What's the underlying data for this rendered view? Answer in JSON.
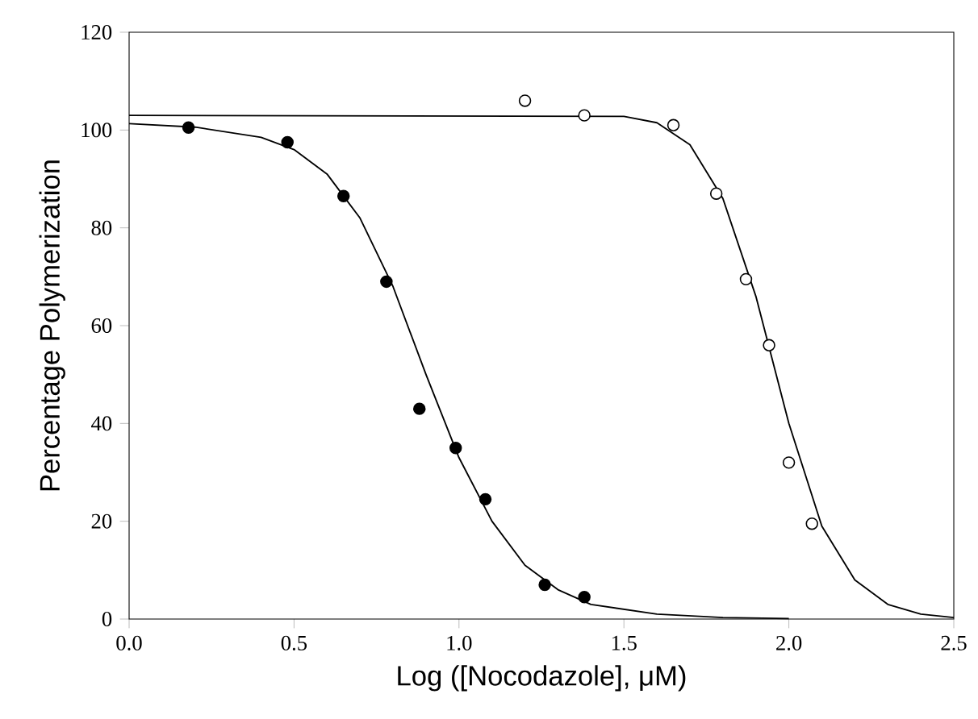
{
  "chart_data": {
    "type": "scatter",
    "xlabel": "Log ([Nocodazole], μM)",
    "ylabel": "Percentage Polymerization",
    "xlim": [
      0,
      2.5
    ],
    "ylim": [
      0,
      120
    ],
    "xticks": [
      {
        "value": 0,
        "label": "0.0"
      },
      {
        "value": 0.5,
        "label": "0.5"
      },
      {
        "value": 1,
        "label": "1.0"
      },
      {
        "value": 1.5,
        "label": "1.5"
      },
      {
        "value": 2,
        "label": "2.0"
      },
      {
        "value": 2.5,
        "label": "2.5"
      }
    ],
    "yticks": [
      0,
      20,
      40,
      60,
      80,
      100,
      120
    ],
    "grid": false,
    "series": [
      {
        "marker": "circle",
        "color": "#000000",
        "x": [
          0.18,
          0.48,
          0.65,
          0.78,
          0.88,
          0.99,
          1.08,
          1.26,
          1.38
        ],
        "values": [
          100.5,
          97.5,
          86.5,
          69,
          43,
          35,
          24.5,
          7,
          4.5
        ]
      },
      {
        "marker": "circle",
        "color": "#ffffff",
        "x": [
          1.2,
          1.38,
          1.65,
          1.78,
          1.87,
          1.94,
          2.0,
          2.07
        ],
        "values": [
          106,
          103,
          101,
          87,
          69.5,
          56,
          32,
          19.5
        ]
      },
      {
        "type": "line",
        "marker": "none",
        "color": "#000000",
        "x": [
          0,
          0.2,
          0.4,
          0.5,
          0.6,
          0.7,
          0.8,
          0.9,
          1.0,
          1.1,
          1.2,
          1.3,
          1.4,
          1.6,
          1.8,
          2.0
        ],
        "values": [
          101.3,
          100.6,
          98.5,
          96,
          91,
          82,
          68,
          50,
          33,
          20,
          11,
          6,
          3,
          1,
          0.3,
          0.1
        ]
      },
      {
        "type": "line",
        "marker": "none",
        "color": "#000000",
        "x": [
          0,
          1.5,
          1.6,
          1.7,
          1.8,
          1.9,
          2.0,
          2.1,
          2.2,
          2.3,
          2.4,
          2.5
        ],
        "values": [
          103,
          102.8,
          101.5,
          97,
          86,
          66,
          40,
          19,
          8,
          3,
          1,
          0.3
        ]
      }
    ]
  }
}
